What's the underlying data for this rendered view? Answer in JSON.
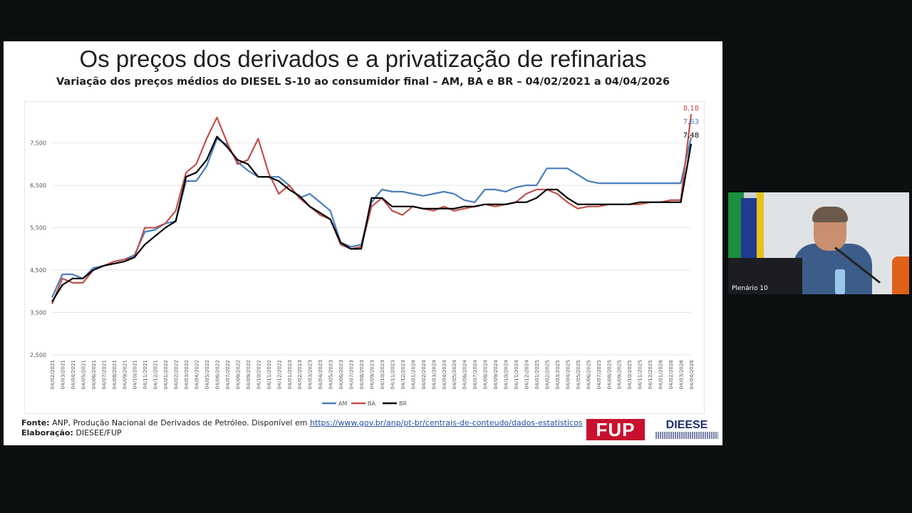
{
  "slide": {
    "title": "Os preços dos derivados e a privatização de refinarias",
    "subtitle": "Variação dos preços médios do DIESEL S-10 ao consumidor final – AM, BA e BR – 04/02/2021 a 04/04/2026",
    "source_label": "Fonte:",
    "source_text": "ANP, Produção Nacional de Derivados de Petróleo. Disponível em",
    "source_link": "https://www.gov.br/anp/pt-br/centrais-de-conteudo/dados-estatisticos",
    "elaboration_label": "Elaboração:",
    "elaboration_text": "DIESEE/FUP",
    "logo_fup": "FUP",
    "logo_dieese": "DIEESE"
  },
  "video": {
    "label": "Plenário 10"
  },
  "chart_data": {
    "type": "line",
    "ylim": [
      2500,
      8300
    ],
    "yticks": [
      "2,500",
      "3,500",
      "4,500",
      "5,500",
      "6,500",
      "7,500"
    ],
    "ytick_values": [
      2500,
      3500,
      4500,
      5500,
      6500,
      7500
    ],
    "grid": "horizontal",
    "legend_placement": "bottom",
    "categories": [
      "04/02/2021",
      "04/03/2021",
      "04/04/2021",
      "04/05/2021",
      "04/06/2021",
      "04/07/2021",
      "04/08/2021",
      "04/09/2021",
      "04/10/2021",
      "04/11/2021",
      "04/12/2021",
      "04/01/2022",
      "04/02/2022",
      "04/03/2022",
      "04/04/2022",
      "04/05/2022",
      "04/06/2022",
      "04/07/2022",
      "04/08/2022",
      "04/09/2022",
      "04/10/2022",
      "04/11/2022",
      "04/12/2022",
      "04/01/2023",
      "04/02/2023",
      "04/03/2023",
      "04/04/2023",
      "04/05/2023",
      "04/06/2023",
      "04/07/2023",
      "04/08/2023",
      "04/09/2023",
      "04/10/2023",
      "04/11/2023",
      "04/12/2023",
      "04/01/2024",
      "04/02/2024",
      "04/03/2024",
      "04/04/2024",
      "04/05/2024",
      "04/06/2024",
      "04/07/2024",
      "04/08/2024",
      "04/09/2024",
      "04/10/2024",
      "04/11/2024",
      "04/12/2024",
      "04/01/2025",
      "04/02/2025",
      "04/03/2025",
      "04/04/2025",
      "04/05/2025",
      "04/06/2025",
      "04/07/2025",
      "04/08/2025",
      "04/09/2025",
      "04/10/2025",
      "04/11/2025",
      "04/12/2025",
      "04/01/2026",
      "04/02/2026",
      "04/03/2026",
      "04/04/2026"
    ],
    "series": [
      {
        "name": "AM",
        "color": "#4a7ebb",
        "values": [
          3850,
          4400,
          4400,
          4300,
          4550,
          4600,
          4700,
          4750,
          4850,
          5400,
          5450,
          5600,
          5650,
          6600,
          6600,
          6950,
          7600,
          7450,
          7050,
          6850,
          6700,
          6700,
          6700,
          6500,
          6200,
          6300,
          6100,
          5900,
          5150,
          5050,
          5100,
          6100,
          6400,
          6350,
          6350,
          6300,
          6250,
          6300,
          6350,
          6300,
          6150,
          6100,
          6400,
          6400,
          6350,
          6450,
          6500,
          6500,
          6900,
          6900,
          6900,
          6750,
          6600,
          6550,
          6550,
          6550,
          6550,
          6550,
          6550,
          6550,
          6550,
          6550,
          7630
        ]
      },
      {
        "name": "BA",
        "color": "#c0504d",
        "values": [
          3700,
          4300,
          4200,
          4200,
          4500,
          4600,
          4700,
          4750,
          4800,
          5500,
          5500,
          5600,
          5900,
          6800,
          7000,
          7600,
          8100,
          7500,
          7000,
          7100,
          7600,
          6800,
          6300,
          6500,
          6200,
          6000,
          5800,
          5700,
          5100,
          5000,
          5050,
          6000,
          6200,
          5900,
          5800,
          6000,
          5950,
          5900,
          6000,
          5900,
          5950,
          6000,
          6050,
          6000,
          6050,
          6100,
          6300,
          6400,
          6400,
          6300,
          6100,
          5950,
          6000,
          6000,
          6050,
          6050,
          6050,
          6050,
          6100,
          6100,
          6150,
          6150,
          8180
        ]
      },
      {
        "name": "BR",
        "color": "#000000",
        "values": [
          3750,
          4150,
          4300,
          4300,
          4500,
          4600,
          4650,
          4700,
          4800,
          5100,
          5300,
          5500,
          5650,
          6700,
          6800,
          7100,
          7650,
          7400,
          7100,
          7000,
          6700,
          6700,
          6600,
          6400,
          6250,
          6000,
          5850,
          5700,
          5150,
          5000,
          5000,
          6200,
          6200,
          6000,
          6000,
          6000,
          5950,
          5950,
          5950,
          5950,
          6000,
          6000,
          6050,
          6050,
          6050,
          6100,
          6100,
          6200,
          6400,
          6400,
          6200,
          6050,
          6050,
          6050,
          6050,
          6050,
          6050,
          6100,
          6100,
          6100,
          6100,
          6100,
          7480
        ]
      }
    ],
    "end_labels": [
      "8,18",
      "7,63",
      "7,48"
    ]
  }
}
